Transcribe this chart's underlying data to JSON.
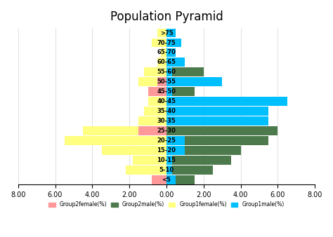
{
  "title": "Population Pyramid",
  "age_groups": [
    "<5",
    "5-10",
    "10-15",
    "15-20",
    "20-25",
    "25-30",
    "30-35",
    "35-40",
    "40-45",
    "45-50",
    "50-55",
    "55-60",
    "60-65",
    "65-70",
    "70-75",
    ">75"
  ],
  "group2_female": [
    0.8,
    0.0,
    0.0,
    0.0,
    0.0,
    1.5,
    0.0,
    0.0,
    0.0,
    1.0,
    0.5,
    0.0,
    0.0,
    0.0,
    0.0,
    0.0
  ],
  "group1_female": [
    0.0,
    2.2,
    1.8,
    3.5,
    5.5,
    4.5,
    1.5,
    1.2,
    1.0,
    0.5,
    1.5,
    1.2,
    0.5,
    0.3,
    0.8,
    0.5
  ],
  "group2_male": [
    1.5,
    2.5,
    3.5,
    4.0,
    5.5,
    6.0,
    2.0,
    1.5,
    1.5,
    1.5,
    1.5,
    2.0,
    0.5,
    0.5,
    0.5,
    0.3
  ],
  "group1_male": [
    0.5,
    0.3,
    0.3,
    1.0,
    1.0,
    0.0,
    5.5,
    5.5,
    6.5,
    0.3,
    3.0,
    0.3,
    1.0,
    0.5,
    0.8,
    0.5
  ],
  "color_group2_female": "#FF9999",
  "color_group1_female": "#FFFF80",
  "color_group2_male": "#4C7A4C",
  "color_group1_male": "#00BFFF",
  "xlim": 8.0,
  "legend_labels": [
    "Group2female(%)",
    "Group2male(%)",
    "Group1female(%)",
    "Group1male(%)"
  ],
  "figsize": [
    4.74,
    3.38
  ],
  "dpi": 100
}
